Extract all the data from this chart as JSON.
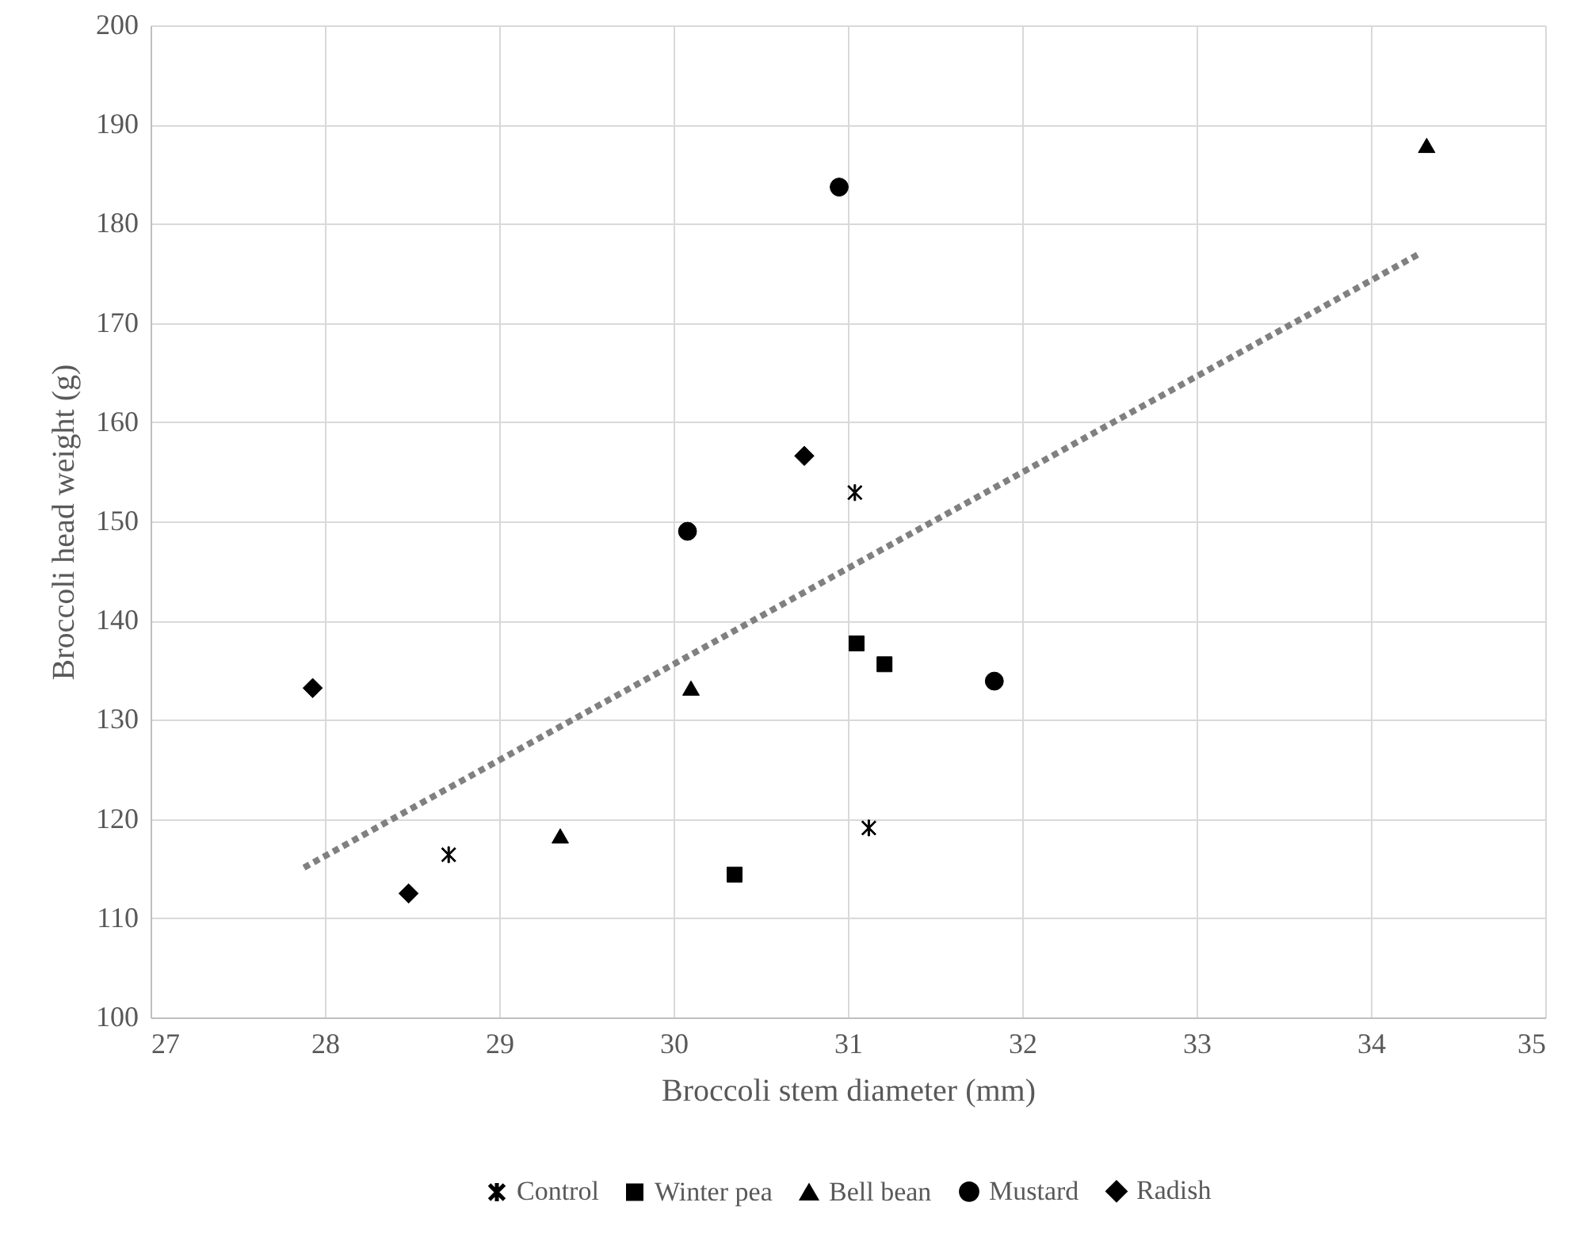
{
  "chart_data": {
    "type": "scatter",
    "xlabel": "Broccoli stem diameter (mm)",
    "ylabel": "Broccoli head weight (g)",
    "xlim": [
      27,
      35
    ],
    "xticks": [
      27,
      28,
      29,
      30,
      31,
      32,
      33,
      34,
      35
    ],
    "ylim": [
      100,
      200
    ],
    "yticks": [
      100,
      110,
      120,
      130,
      140,
      150,
      160,
      170,
      180,
      190,
      200
    ],
    "grid": true,
    "legend": "bottom",
    "series": [
      {
        "name": "Control",
        "color": "#000000",
        "marker": "cross",
        "x": [
          28.71,
          31.12,
          31.04
        ],
        "values": [
          116.4,
          119.1,
          152.9
        ]
      },
      {
        "name": "Winter pea",
        "color": "#000000",
        "marker": "square",
        "x": [
          31.05,
          31.21,
          30.35
        ],
        "values": [
          137.7,
          135.6,
          114.4
        ]
      },
      {
        "name": "Bell bean",
        "color": "#000000",
        "marker": "triangle",
        "x": [
          30.1,
          29.35,
          34.32
        ],
        "values": [
          133.2,
          118.3,
          187.9
        ]
      },
      {
        "name": "Mustard",
        "color": "#000000",
        "marker": "circle",
        "x": [
          31.84,
          30.95,
          30.08
        ],
        "values": [
          133.9,
          183.7,
          149.0
        ]
      },
      {
        "name": "Radish",
        "color": "#000000",
        "marker": "diamond",
        "x": [
          27.93,
          28.48,
          30.75
        ],
        "values": [
          133.2,
          112.5,
          156.6
        ]
      },
      {
        "type": "line",
        "color": "#808080",
        "line_style": "dotted",
        "marker": "none",
        "x": [
          27.88,
          34.27
        ],
        "values": [
          115.1,
          176.9
        ]
      }
    ]
  }
}
